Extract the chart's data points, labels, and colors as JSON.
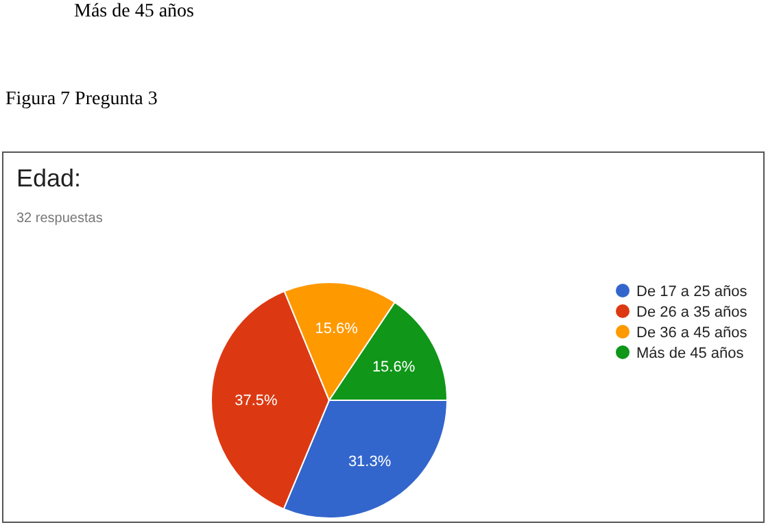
{
  "chart_data": {
    "type": "pie",
    "title": "Edad:",
    "subtitle": "32 respuestas",
    "annotations": [
      "Más de 45 años",
      "Figura 7 Pregunta 3"
    ],
    "categories": [
      "De 17 a 25 años",
      "De 26 a 35 años",
      "De 36 a 45 años",
      "Más de 45 años"
    ],
    "values": [
      31.3,
      37.5,
      15.6,
      15.6
    ],
    "colors": [
      "#3366cc",
      "#dc3912",
      "#ff9900",
      "#109618"
    ],
    "value_labels": [
      "31.3%",
      "37.5%",
      "15.6%",
      "15.6%"
    ],
    "legend": "right"
  }
}
